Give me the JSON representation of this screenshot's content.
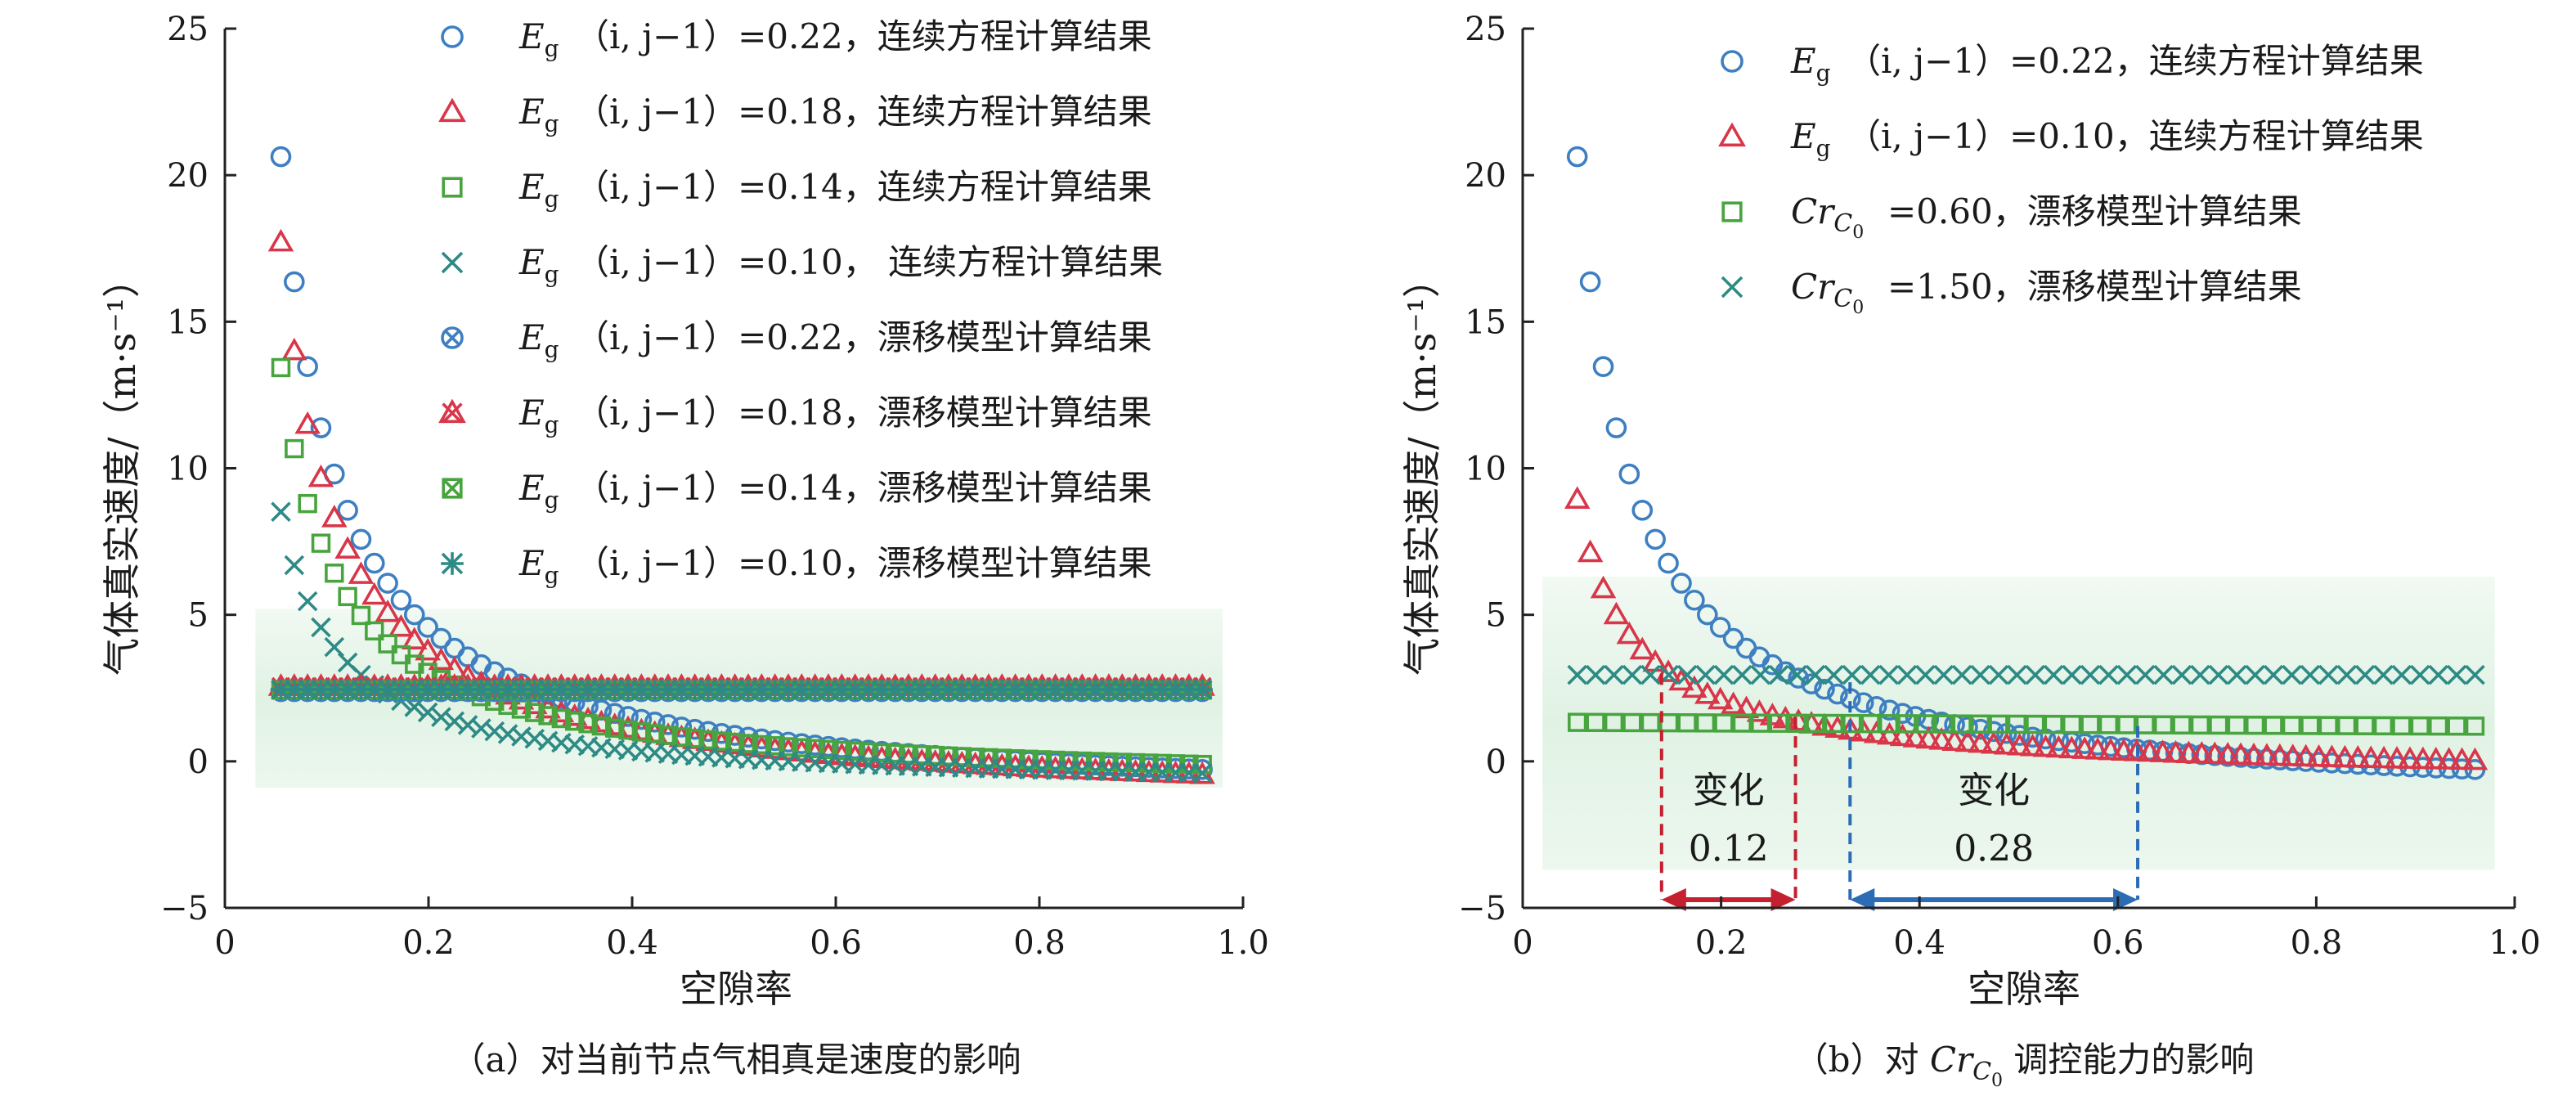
{
  "colors": {
    "blue": "#3e7fc2",
    "red": "#d9364a",
    "green": "#48a43e",
    "teal": "#2d8a85",
    "dark_red": "#c4202f",
    "dark_blue": "#2b6cb5",
    "band": "#d6eedb"
  },
  "chart_data": [
    {
      "type": "scatter",
      "panel": "a",
      "caption": "（a）对当前节点气相真是速度的影响",
      "xlabel": "空隙率",
      "ylabel": "气体真实速度/（m·s⁻¹）",
      "xlim": [
        0,
        1.0
      ],
      "ylim": [
        -5,
        25
      ],
      "x_ticks": [
        "0",
        "0.2",
        "0.4",
        "0.6",
        "0.8",
        "1.0"
      ],
      "y_ticks": [
        "−5",
        "0",
        "5",
        "10",
        "15",
        "20",
        "25"
      ],
      "x_tick_values": [
        0,
        0.2,
        0.4,
        0.6,
        0.8,
        1.0
      ],
      "y_tick_values": [
        -5,
        0,
        5,
        10,
        15,
        20,
        25
      ],
      "legend_placement": "top-right",
      "shaded_band": {
        "y_range": [
          -0.9,
          5.2
        ],
        "x_range": [
          0.03,
          0.98
        ]
      },
      "series": [
        {
          "name": "Eg(i,j−1)=0.22，连续方程计算结果",
          "legend_main": "（i, j−1）=0.22，连续方程计算结果",
          "marker": "circle",
          "color": "blue",
          "model": "drift_free",
          "x_start": 0.055,
          "x_end": 0.96,
          "count": 70,
          "k": 1.22,
          "offset": 0.33
        },
        {
          "name": "Eg(i,j−1)=0.18，连续方程计算结果",
          "legend_main": "（i, j−1）=0.18，连续方程计算结果",
          "marker": "triangle",
          "color": "red",
          "model": "drift_free",
          "x_start": 0.055,
          "x_end": 0.96,
          "count": 70,
          "k": 1.06,
          "offset": 0.5
        },
        {
          "name": "Eg(i,j−1)=0.14，连续方程计算结果",
          "legend_main": "（i, j−1）=0.14，连续方程计算结果",
          "marker": "square",
          "color": "green",
          "model": "drift_free",
          "x_start": 0.055,
          "x_end": 0.96,
          "count": 70,
          "k": 0.79,
          "offset": 0.14
        },
        {
          "name": "Eg(i,j−1)=0.10，连续方程计算结果",
          "legend_main": "（i, j−1）=0.10， 连续方程计算结果",
          "marker": "x",
          "color": "teal",
          "model": "drift_free",
          "x_start": 0.055,
          "x_end": 0.96,
          "count": 70,
          "k": 0.52,
          "offset": 0.42
        },
        {
          "name": "Eg(i,j−1)=0.22，漂移模型计算结果",
          "legend_main": "（i, j−1）=0.22，漂移模型计算结果",
          "marker": "circle-x",
          "color": "blue",
          "model": "constant",
          "x_start": 0.055,
          "x_end": 0.96,
          "count": 70,
          "value": 2.38
        },
        {
          "name": "Eg(i,j−1)=0.18，漂移模型计算结果",
          "legend_main": "（i, j−1）=0.18，漂移模型计算结果",
          "marker": "triangle-x",
          "color": "red",
          "model": "constant",
          "x_start": 0.055,
          "x_end": 0.96,
          "count": 70,
          "value": 2.55
        },
        {
          "name": "Eg(i,j−1)=0.14，漂移模型计算结果",
          "legend_main": "（i, j−1）=0.14，漂移模型计算结果",
          "marker": "square-x",
          "color": "green",
          "model": "constant",
          "x_start": 0.055,
          "x_end": 0.96,
          "count": 70,
          "value": 2.43
        },
        {
          "name": "Eg(i,j−1)=0.10，漂移模型计算结果",
          "legend_main": "（i, j−1）=0.10，漂移模型计算结果",
          "marker": "asterisk",
          "color": "teal",
          "model": "constant",
          "x_start": 0.055,
          "x_end": 0.96,
          "count": 70,
          "value": 2.45
        }
      ]
    },
    {
      "type": "scatter",
      "panel": "b",
      "caption_prefix": "（b）对 ",
      "caption_suffix": " 调控能力的影响",
      "xlabel": "空隙率",
      "ylabel": "气体真实速度/（m·s⁻¹）",
      "xlim": [
        0,
        1.0
      ],
      "ylim": [
        -5,
        25
      ],
      "x_ticks": [
        "0",
        "0.2",
        "0.4",
        "0.6",
        "0.8",
        "1.0"
      ],
      "y_ticks": [
        "−5",
        "0",
        "5",
        "10",
        "15",
        "20",
        "25"
      ],
      "x_tick_values": [
        0,
        0.2,
        0.4,
        0.6,
        0.8,
        1.0
      ],
      "y_tick_values": [
        -5,
        0,
        5,
        10,
        15,
        20,
        25
      ],
      "legend_placement": "top-right",
      "shaded_band": {
        "y_range": [
          -3.7,
          6.3
        ],
        "x_range": [
          0.02,
          0.98
        ]
      },
      "series": [
        {
          "name": "Eg(i,j−1)=0.22，连续方程计算结果",
          "legend_type": "eg",
          "legend_main": "（i, j−1）=0.22，连续方程计算结果",
          "marker": "circle",
          "color": "blue",
          "model": "drift_free",
          "x_start": 0.055,
          "x_end": 0.96,
          "count": 70,
          "k": 1.22,
          "offset": 0.33
        },
        {
          "name": "Eg(i,j−1)=0.10，连续方程计算结果",
          "legend_type": "eg",
          "legend_main": "（i, j−1）=0.10，连续方程计算结果",
          "marker": "triangle",
          "color": "red",
          "model": "drift_free",
          "x_start": 0.055,
          "x_end": 0.96,
          "count": 70,
          "k": 0.52,
          "offset": 0.0
        },
        {
          "name": "CrC0=0.60，漂移模型计算结果",
          "legend_type": "cr",
          "legend_main": "=0.60，漂移模型计算结果",
          "marker": "square",
          "color": "green",
          "model": "linear",
          "x_start": 0.055,
          "x_end": 0.96,
          "count": 50,
          "y0": 1.33,
          "y1": 1.2
        },
        {
          "name": "CrC0=1.50，漂移模型计算结果",
          "legend_type": "cr",
          "legend_main": "=1.50，漂移模型计算结果",
          "marker": "x",
          "color": "teal",
          "model": "constant",
          "x_start": 0.055,
          "x_end": 0.96,
          "count": 50,
          "value": 2.95
        }
      ],
      "annotations": [
        {
          "label": "变化",
          "value": "0.12",
          "color": "dark_red",
          "x_from": 0.14,
          "x_to": 0.275
        },
        {
          "label": "变化",
          "value": "0.28",
          "color": "dark_blue",
          "x_from": 0.33,
          "x_to": 0.62
        }
      ],
      "cr_symbol": {
        "main": "Cr",
        "sub": "C",
        "subsub": "0"
      }
    }
  ],
  "eg_symbol": {
    "main": "E",
    "sub": "g"
  }
}
